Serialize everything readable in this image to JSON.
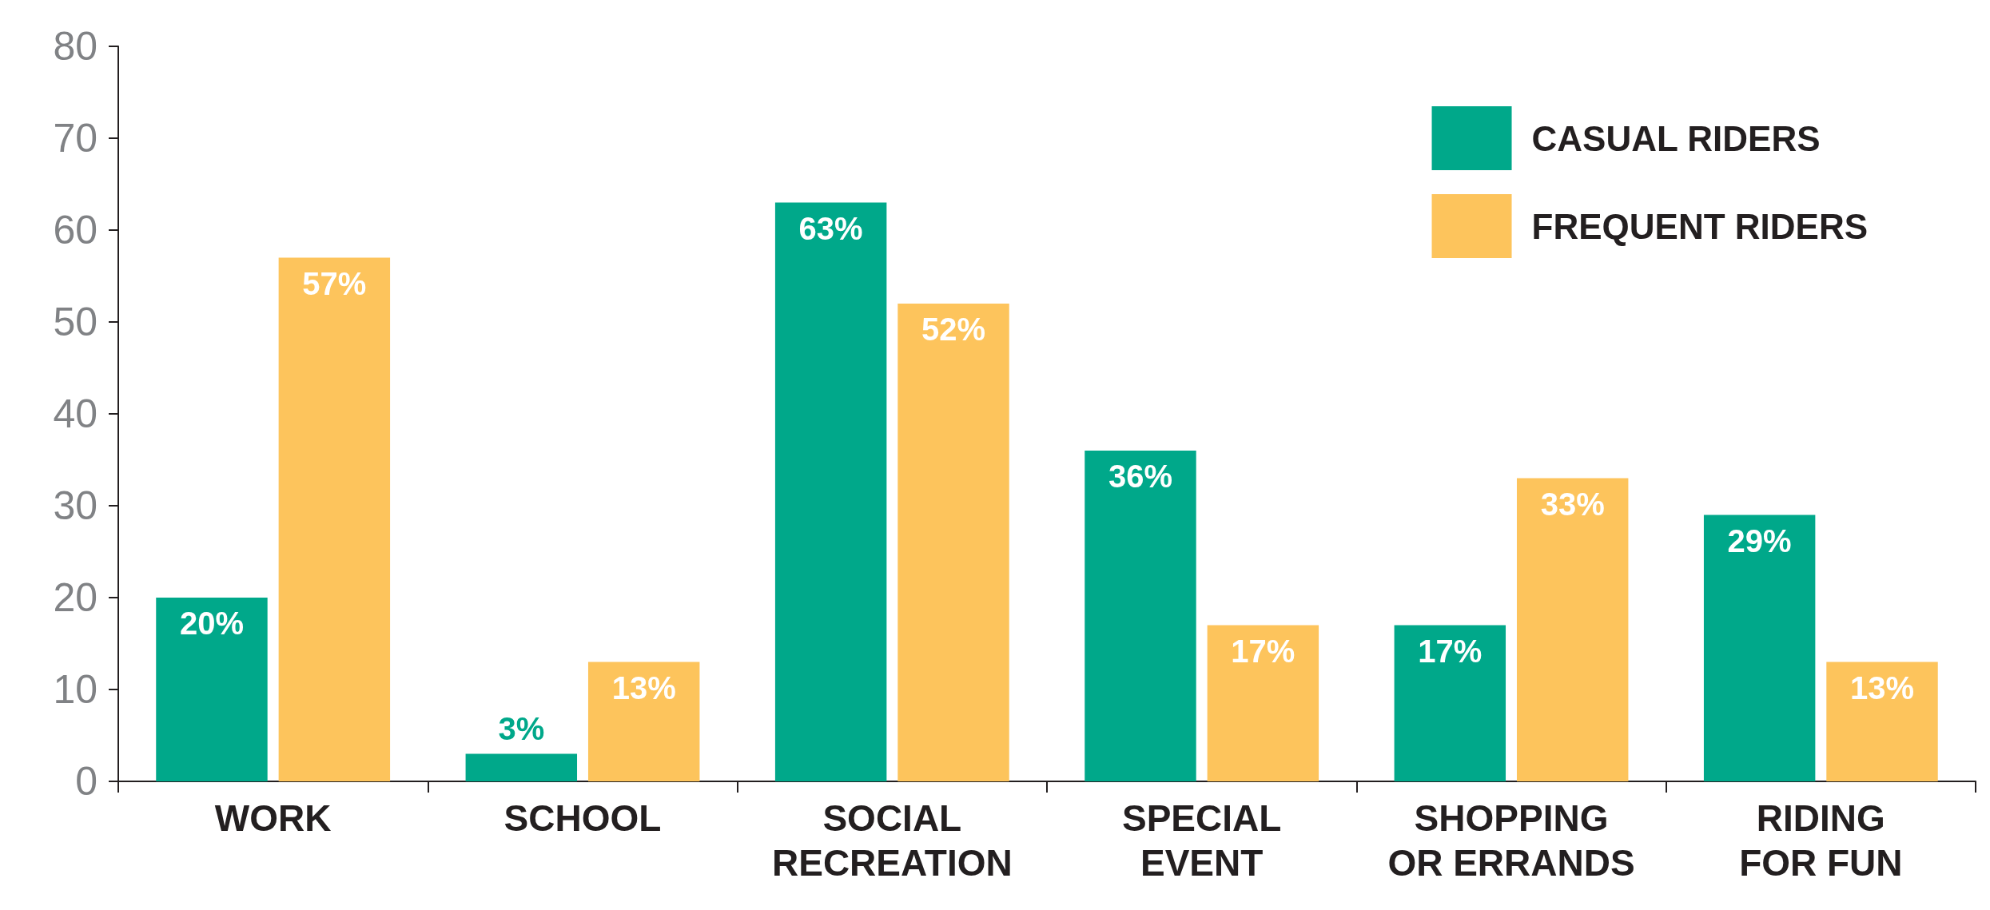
{
  "chart_data": {
    "type": "bar",
    "categories": [
      "WORK",
      "SCHOOL",
      "SOCIAL\nRECREATION",
      "SPECIAL\nEVENT",
      "SHOPPING\nOR ERRANDS",
      "RIDING\nFOR FUN"
    ],
    "series": [
      {
        "name": "CASUAL RIDERS",
        "color": "#00a88a",
        "values": [
          20,
          3,
          63,
          36,
          17,
          29
        ],
        "value_labels": [
          "20%",
          "3%",
          "63%",
          "36%",
          "17%",
          "29%"
        ]
      },
      {
        "name": "FREQUENT RIDERS",
        "color": "#fdc45c",
        "values": [
          57,
          13,
          52,
          17,
          33,
          13
        ],
        "value_labels": [
          "57%",
          "13%",
          "52%",
          "17%",
          "33%",
          "13%"
        ]
      }
    ],
    "ylim": [
      0,
      80
    ],
    "yticks": [
      0,
      10,
      20,
      30,
      40,
      50,
      60,
      70,
      80
    ],
    "grid": false,
    "legend": "top right"
  }
}
